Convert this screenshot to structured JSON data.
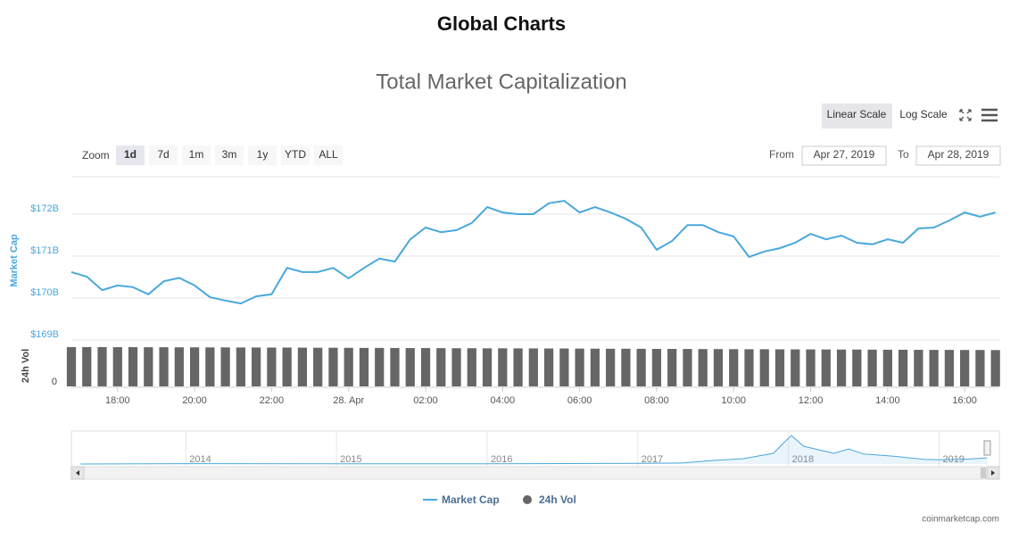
{
  "heading": "Global Charts",
  "chart_data": {
    "type": "line",
    "title": "Total Market Capitalization",
    "controls": {
      "scales": [
        "Linear Scale",
        "Log Scale"
      ],
      "log_scale": false,
      "zoom_label": "Zoom",
      "zoom": [
        "1d",
        "7d",
        "1m",
        "3m",
        "1y",
        "YTD",
        "ALL"
      ],
      "active_zoom": 0,
      "from_label": "From",
      "from": "Apr 27, 2019",
      "to_label": "To",
      "to": "Apr 28, 2019"
    },
    "y_label": "Market Cap",
    "y2_label": "24h Vol",
    "x": [
      16.8,
      17.2,
      17.6,
      18,
      18.4,
      18.8,
      19.2,
      19.6,
      20,
      20.4,
      20.8,
      21.2,
      21.6,
      22,
      22.4,
      22.8,
      23.2,
      23.6,
      24,
      24.4,
      24.8,
      25.2,
      25.6,
      26,
      26.4,
      26.8,
      27.2,
      27.6,
      28,
      28.4,
      28.8,
      29.2,
      29.6,
      30,
      30.4,
      30.8,
      31.2,
      31.6,
      32,
      32.4,
      32.8,
      33.2,
      33.6,
      34,
      34.4,
      34.8,
      35.2,
      35.6,
      36,
      36.4,
      36.8,
      37.2,
      37.6,
      38,
      38.4,
      38.8,
      39.2,
      39.6,
      40,
      40.4,
      40.8
    ],
    "xlim": [
      16.8,
      40.9
    ],
    "xticks": [
      {
        "value": 18,
        "label": "18:00"
      },
      {
        "value": 20,
        "label": "20:00"
      },
      {
        "value": 22,
        "label": "22:00"
      },
      {
        "value": 24,
        "label": "28. Apr"
      },
      {
        "value": 26,
        "label": "02:00"
      },
      {
        "value": 28,
        "label": "04:00"
      },
      {
        "value": 30,
        "label": "06:00"
      },
      {
        "value": 32,
        "label": "08:00"
      },
      {
        "value": 34,
        "label": "10:00"
      },
      {
        "value": 36,
        "label": "12:00"
      },
      {
        "value": 38,
        "label": "14:00"
      },
      {
        "value": 40,
        "label": "16:00"
      }
    ],
    "ylim": [
      168.9,
      172.9
    ],
    "yticks": [
      {
        "value": 169,
        "label": "$169B"
      },
      {
        "value": 170,
        "label": "$170B"
      },
      {
        "value": 171,
        "label": "$171B"
      },
      {
        "value": 172,
        "label": "$172B"
      }
    ],
    "y2lim": [
      0,
      48
    ],
    "y2ticks": [
      0
    ],
    "grid": true,
    "series": [
      {
        "name": "Market Cap",
        "color": "#4aa8dc",
        "values": [
          170.62,
          170.51,
          170.19,
          170.3,
          170.26,
          170.09,
          170.4,
          170.48,
          170.3,
          170.02,
          169.94,
          169.87,
          170.04,
          170.09,
          170.72,
          170.62,
          170.62,
          170.72,
          170.47,
          170.72,
          170.94,
          170.87,
          171.4,
          171.68,
          171.57,
          171.62,
          171.79,
          172.17,
          172.04,
          172.0,
          172.0,
          172.26,
          172.32,
          172.04,
          172.17,
          172.04,
          171.89,
          171.68,
          171.15,
          171.36,
          171.74,
          171.74,
          171.57,
          171.47,
          170.98,
          171.11,
          171.19,
          171.32,
          171.53,
          171.4,
          171.49,
          171.32,
          171.28,
          171.4,
          171.32,
          171.66,
          171.68,
          171.85,
          172.04,
          171.94,
          172.04
        ]
      },
      {
        "name": "24h Vol",
        "color": "#666666",
        "axis": "y2",
        "values": [
          47,
          47,
          47,
          46.9,
          46.9,
          46.8,
          46.8,
          46.7,
          46.7,
          46.6,
          46.6,
          46.5,
          46.5,
          46.4,
          46.4,
          46.3,
          46.2,
          46.2,
          46.1,
          46,
          46,
          45.9,
          45.8,
          45.8,
          45.7,
          45.6,
          45.6,
          45.5,
          45.5,
          45.4,
          45.4,
          45.3,
          45.3,
          45.2,
          45.1,
          45,
          45,
          44.9,
          44.8,
          44.8,
          44.7,
          44.6,
          44.6,
          44.5,
          44.4,
          44.4,
          44.3,
          44.2,
          44.2,
          44.1,
          44,
          44,
          43.9,
          43.8,
          43.8,
          43.7,
          43.6,
          43.6,
          43.5,
          43.5,
          43.4
        ]
      }
    ],
    "navigator": {
      "x": [
        2013.3,
        2014,
        2015,
        2016,
        2017,
        2017.3,
        2017.5,
        2017.7,
        2017.9,
        2017.97,
        2018.02,
        2018.1,
        2018.2,
        2018.3,
        2018.4,
        2018.5,
        2018.7,
        2018.9,
        2019,
        2019.2,
        2019.32
      ],
      "values": [
        1,
        10,
        5,
        7,
        18,
        30,
        100,
        150,
        300,
        600,
        800,
        500,
        400,
        300,
        420,
        280,
        220,
        130,
        120,
        140,
        172
      ],
      "xlim": [
        2013.24,
        2019.4
      ],
      "ylim": [
        0,
        850
      ],
      "xticks": [
        2014,
        2015,
        2016,
        2017,
        2018,
        2019
      ],
      "color": "#4aa8dc"
    },
    "credit": "coinmarketcap.com"
  }
}
